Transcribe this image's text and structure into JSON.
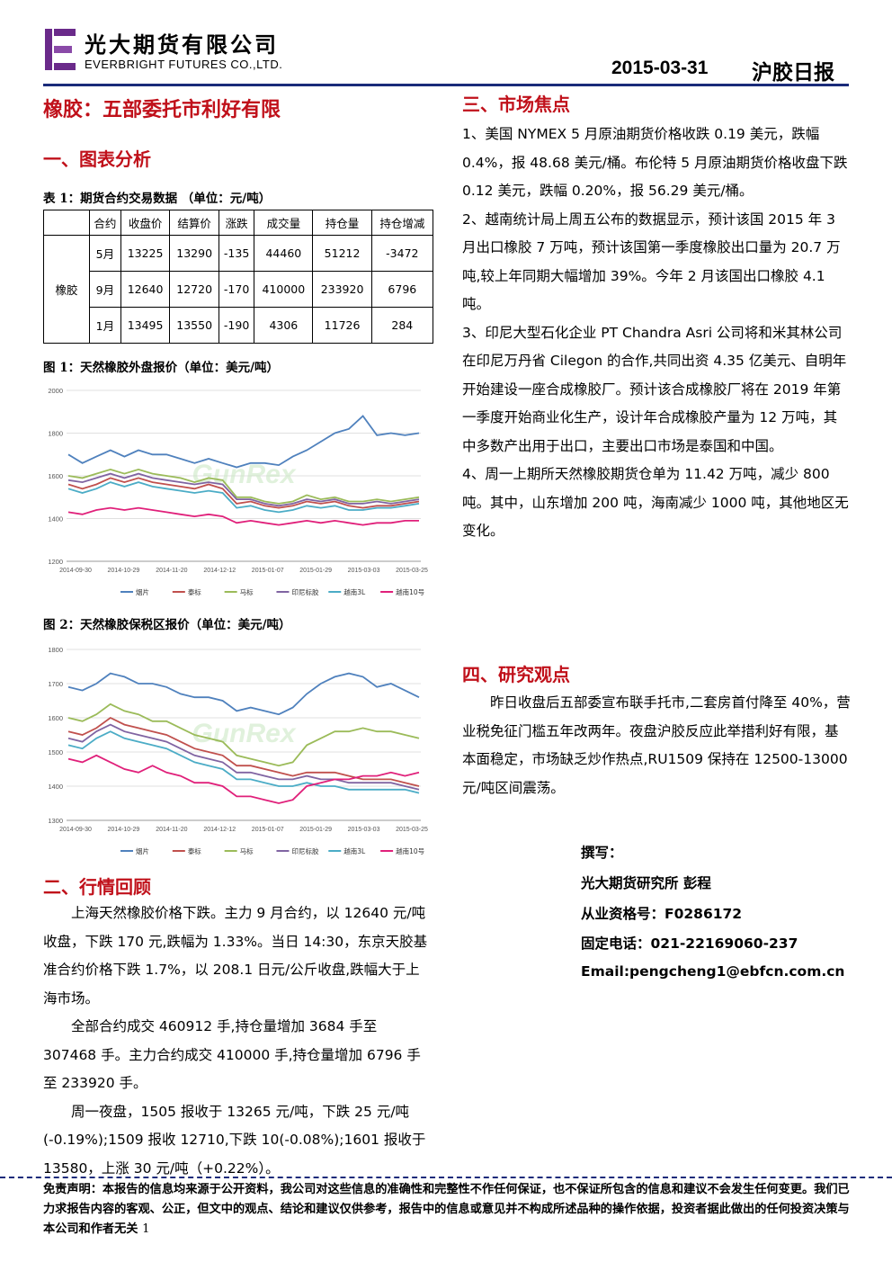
{
  "header": {
    "company_cn": "光大期货有限公司",
    "company_en": "EVERBRIGHT FUTURES CO.,LTD.",
    "date": "2015-03-31",
    "report_type": "沪胶日报"
  },
  "title": "橡胶：五部委托市利好有限",
  "section1": {
    "heading": "一、图表分析",
    "table_caption": "表 1：期货合约交易数据 （单位：元/吨）",
    "table": {
      "headers": [
        "合约",
        "收盘价",
        "结算价",
        "涨跌",
        "成交量",
        "持仓量",
        "持仓增减"
      ],
      "group_label": "橡胶",
      "rows": [
        [
          "5月",
          "13225",
          "13290",
          "-135",
          "44460",
          "51212",
          "-3472"
        ],
        [
          "9月",
          "12640",
          "12720",
          "-170",
          "410000",
          "233920",
          "6796"
        ],
        [
          "1月",
          "13495",
          "13550",
          "-190",
          "4306",
          "11726",
          "284"
        ]
      ]
    },
    "fig1_caption": "图 1：天然橡胶外盘报价（单位：美元/吨）",
    "fig2_caption": "图 2：天然橡胶保税区报价（单位：美元/吨）"
  },
  "chart_data": [
    {
      "type": "line",
      "x_ticks": [
        "2014-09-30",
        "2014-10-29",
        "2014-11-20",
        "2014-12-12",
        "2015-01-07",
        "2015-01-29",
        "2015-03-03",
        "2015-03-25"
      ],
      "y_ticks": [
        1200,
        1400,
        1600,
        1800,
        2000
      ],
      "ylim": [
        1200,
        2000
      ],
      "watermark": "GunRex",
      "series": [
        {
          "name": "烟片",
          "color": "#4f81bd",
          "values": [
            1700,
            1660,
            1690,
            1720,
            1690,
            1720,
            1700,
            1700,
            1680,
            1660,
            1680,
            1660,
            1640,
            1660,
            1660,
            1650,
            1690,
            1720,
            1760,
            1800,
            1820,
            1880,
            1790,
            1800,
            1790,
            1800
          ]
        },
        {
          "name": "泰标",
          "color": "#c0504d",
          "values": [
            1560,
            1540,
            1560,
            1590,
            1570,
            1590,
            1570,
            1560,
            1550,
            1540,
            1560,
            1540,
            1470,
            1480,
            1460,
            1450,
            1460,
            1480,
            1470,
            1480,
            1460,
            1450,
            1460,
            1460,
            1470,
            1480
          ]
        },
        {
          "name": "马标",
          "color": "#9bbb59",
          "values": [
            1600,
            1590,
            1610,
            1630,
            1610,
            1630,
            1610,
            1600,
            1590,
            1570,
            1590,
            1580,
            1500,
            1500,
            1480,
            1470,
            1480,
            1510,
            1490,
            1500,
            1480,
            1480,
            1490,
            1480,
            1490,
            1500
          ]
        },
        {
          "name": "印尼标胶",
          "color": "#8064a2",
          "values": [
            1580,
            1570,
            1590,
            1610,
            1590,
            1610,
            1590,
            1580,
            1570,
            1560,
            1570,
            1560,
            1490,
            1490,
            1470,
            1460,
            1470,
            1490,
            1480,
            1490,
            1470,
            1470,
            1480,
            1470,
            1480,
            1490
          ]
        },
        {
          "name": "越南3L",
          "color": "#4bacc6",
          "values": [
            1540,
            1520,
            1540,
            1570,
            1550,
            1570,
            1550,
            1540,
            1530,
            1520,
            1530,
            1520,
            1450,
            1460,
            1440,
            1430,
            1440,
            1460,
            1450,
            1460,
            1440,
            1440,
            1450,
            1450,
            1460,
            1470
          ]
        },
        {
          "name": "越南10号",
          "color": "#e0207a",
          "values": [
            1430,
            1420,
            1440,
            1450,
            1440,
            1450,
            1440,
            1430,
            1420,
            1410,
            1420,
            1410,
            1380,
            1390,
            1380,
            1370,
            1380,
            1390,
            1380,
            1390,
            1380,
            1370,
            1380,
            1380,
            1390,
            1390
          ]
        }
      ]
    },
    {
      "type": "line",
      "x_ticks": [
        "2014-09-30",
        "2014-10-29",
        "2014-11-20",
        "2014-12-12",
        "2015-01-07",
        "2015-01-29",
        "2015-03-03",
        "2015-03-25"
      ],
      "y_ticks": [
        1300,
        1400,
        1500,
        1600,
        1700,
        1800
      ],
      "ylim": [
        1300,
        1800
      ],
      "watermark": "GunRex",
      "series": [
        {
          "name": "烟片",
          "color": "#4f81bd",
          "values": [
            1690,
            1680,
            1700,
            1730,
            1720,
            1700,
            1700,
            1690,
            1670,
            1660,
            1660,
            1650,
            1620,
            1630,
            1620,
            1610,
            1630,
            1670,
            1700,
            1720,
            1730,
            1720,
            1690,
            1700,
            1680,
            1660
          ]
        },
        {
          "name": "泰标",
          "color": "#c0504d",
          "values": [
            1560,
            1550,
            1570,
            1600,
            1580,
            1570,
            1560,
            1550,
            1530,
            1510,
            1500,
            1490,
            1460,
            1460,
            1450,
            1440,
            1430,
            1440,
            1440,
            1440,
            1430,
            1420,
            1420,
            1420,
            1410,
            1400
          ]
        },
        {
          "name": "马标",
          "color": "#9bbb59",
          "values": [
            1600,
            1590,
            1610,
            1640,
            1620,
            1610,
            1590,
            1590,
            1570,
            1550,
            1540,
            1530,
            1490,
            1480,
            1470,
            1460,
            1470,
            1520,
            1540,
            1560,
            1560,
            1570,
            1560,
            1560,
            1550,
            1540
          ]
        },
        {
          "name": "印尼标胶",
          "color": "#8064a2",
          "values": [
            1540,
            1530,
            1560,
            1580,
            1560,
            1550,
            1540,
            1530,
            1510,
            1490,
            1480,
            1470,
            1440,
            1440,
            1430,
            1420,
            1420,
            1430,
            1420,
            1420,
            1410,
            1410,
            1410,
            1410,
            1400,
            1390
          ]
        },
        {
          "name": "越南3L",
          "color": "#4bacc6",
          "values": [
            1520,
            1510,
            1540,
            1560,
            1540,
            1530,
            1520,
            1510,
            1490,
            1470,
            1460,
            1450,
            1420,
            1420,
            1410,
            1400,
            1400,
            1410,
            1400,
            1400,
            1390,
            1390,
            1390,
            1390,
            1390,
            1380
          ]
        },
        {
          "name": "越南10号",
          "color": "#e0207a",
          "values": [
            1480,
            1470,
            1490,
            1470,
            1450,
            1440,
            1460,
            1440,
            1430,
            1410,
            1410,
            1400,
            1370,
            1370,
            1360,
            1350,
            1360,
            1400,
            1410,
            1420,
            1420,
            1430,
            1430,
            1440,
            1430,
            1440
          ]
        }
      ]
    }
  ],
  "section2": {
    "heading": "二、行情回顾",
    "paragraphs": [
      "上海天然橡胶价格下跌。主力 9 月合约，以 12640 元/吨收盘，下跌 170 元,跌幅为 1.33%。当日 14:30，东京天胶基准合约价格下跌 1.7%，以 208.1 日元/公斤收盘,跌幅大于上海市场。",
      "全部合约成交 460912 手,持仓量增加 3684 手至 307468 手。主力合约成交 410000 手,持仓量增加 6796 手至 233920 手。",
      "周一夜盘，1505 报收于 13265 元/吨，下跌 25 元/吨(-0.19%);1509 报收 12710,下跌 10(-0.08%);1601 报收于 13580，上涨 30 元/吨（+0.22%）。"
    ]
  },
  "section3": {
    "heading": "三、市场焦点",
    "paragraphs": [
      "1、美国 NYMEX 5 月原油期货价格收跌 0.19 美元，跌幅 0.4%，报 48.68 美元/桶。布伦特 5 月原油期货价格收盘下跌 0.12 美元，跌幅 0.20%，报 56.29 美元/桶。",
      "2、越南统计局上周五公布的数据显示，预计该国 2015 年 3 月出口橡胶 7 万吨，预计该国第一季度橡胶出口量为 20.7 万吨,较上年同期大幅增加 39%。今年 2 月该国出口橡胶 4.1 吨。",
      "3、印尼大型石化企业 PT Chandra Asri 公司将和米其林公司在印尼万丹省 Cilegon 的合作,共同出资 4.35 亿美元、自明年开始建设一座合成橡胶厂。预计该合成橡胶厂将在 2019 年第一季度开始商业化生产，设计年合成橡胶产量为 12 万吨，其中多数产出用于出口，主要出口市场是泰国和中国。",
      "4、周一上期所天然橡胶期货仓单为 11.42 万吨，减少 800 吨。其中，山东增加 200 吨，海南减少 1000 吨，其他地区无变化。"
    ]
  },
  "section4": {
    "heading": "四、研究观点",
    "paragraph": "昨日收盘后五部委宣布联手托市,二套房首付降至 40%，营业税免征门槛五年改两年。夜盘沪胶反应此举措利好有限，基本面稳定，市场缺乏炒作热点,RU1509 保持在 12500-13000 元/吨区间震荡。"
  },
  "author": {
    "label": "撰写：",
    "name": "光大期货研究所 彭程",
    "license": "从业资格号：F0286172",
    "phone": "固定电话：021-22169060-237",
    "email": "Email:pengcheng1@ebfcn.com.cn"
  },
  "disclaimer": {
    "text": "免责声明：本报告的信息均来源于公开资料，我公司对这些信息的准确性和完整性不作任何保证，也不保证所包含的信息和建议不会发生任何变更。我们已力求报告内容的客观、公正，但文中的观点、结论和建议仅供参考，报告中的信息或意见并不构成所述品种的操作依据，投资者据此做出的任何投资决策与本公司和作者无关",
    "page": "1"
  }
}
